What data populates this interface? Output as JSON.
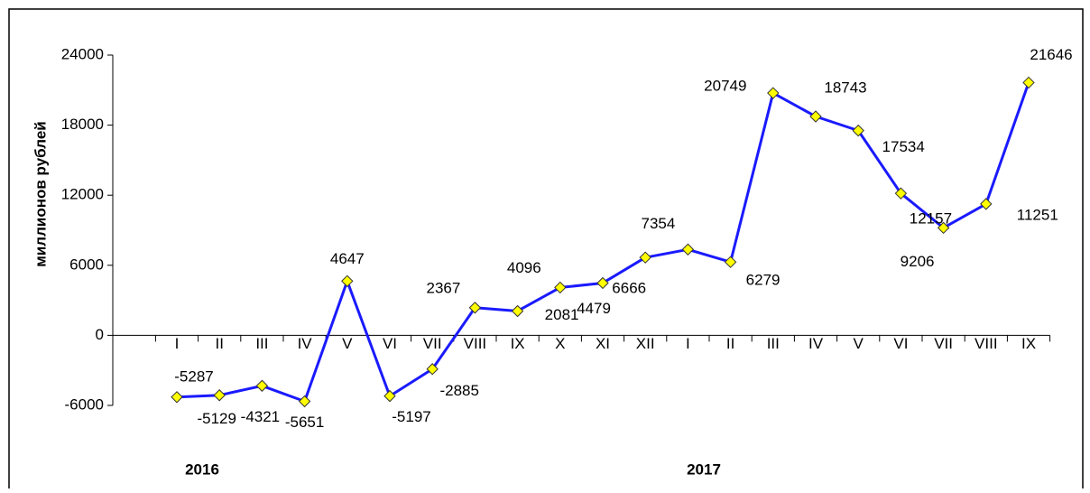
{
  "chart_data": {
    "type": "line",
    "y_label": "миллионов рублей",
    "annotations": [
      "2016",
      "2017"
    ],
    "categories": [
      "I",
      "II",
      "III",
      "IV",
      "V",
      "VI",
      "VII",
      "VIII",
      "IX",
      "X",
      "XI",
      "XII",
      "I",
      "II",
      "III",
      "IV",
      "V",
      "VI",
      "VII",
      "VIII",
      "IX"
    ],
    "series": [
      {
        "name": null,
        "color": "#1a1aff",
        "values": [
          -5287,
          -5129,
          -4321,
          -5651,
          4647,
          -5197,
          -2885,
          2367,
          2081,
          4096,
          4479,
          6666,
          7354,
          6279,
          20749,
          18743,
          17534,
          12157,
          9206,
          11251,
          21646
        ]
      }
    ],
    "marker_color": "#ffff00",
    "ylim": [
      -6000,
      24000
    ],
    "yticks": [
      -6000,
      0,
      6000,
      12000,
      18000,
      24000
    ]
  }
}
